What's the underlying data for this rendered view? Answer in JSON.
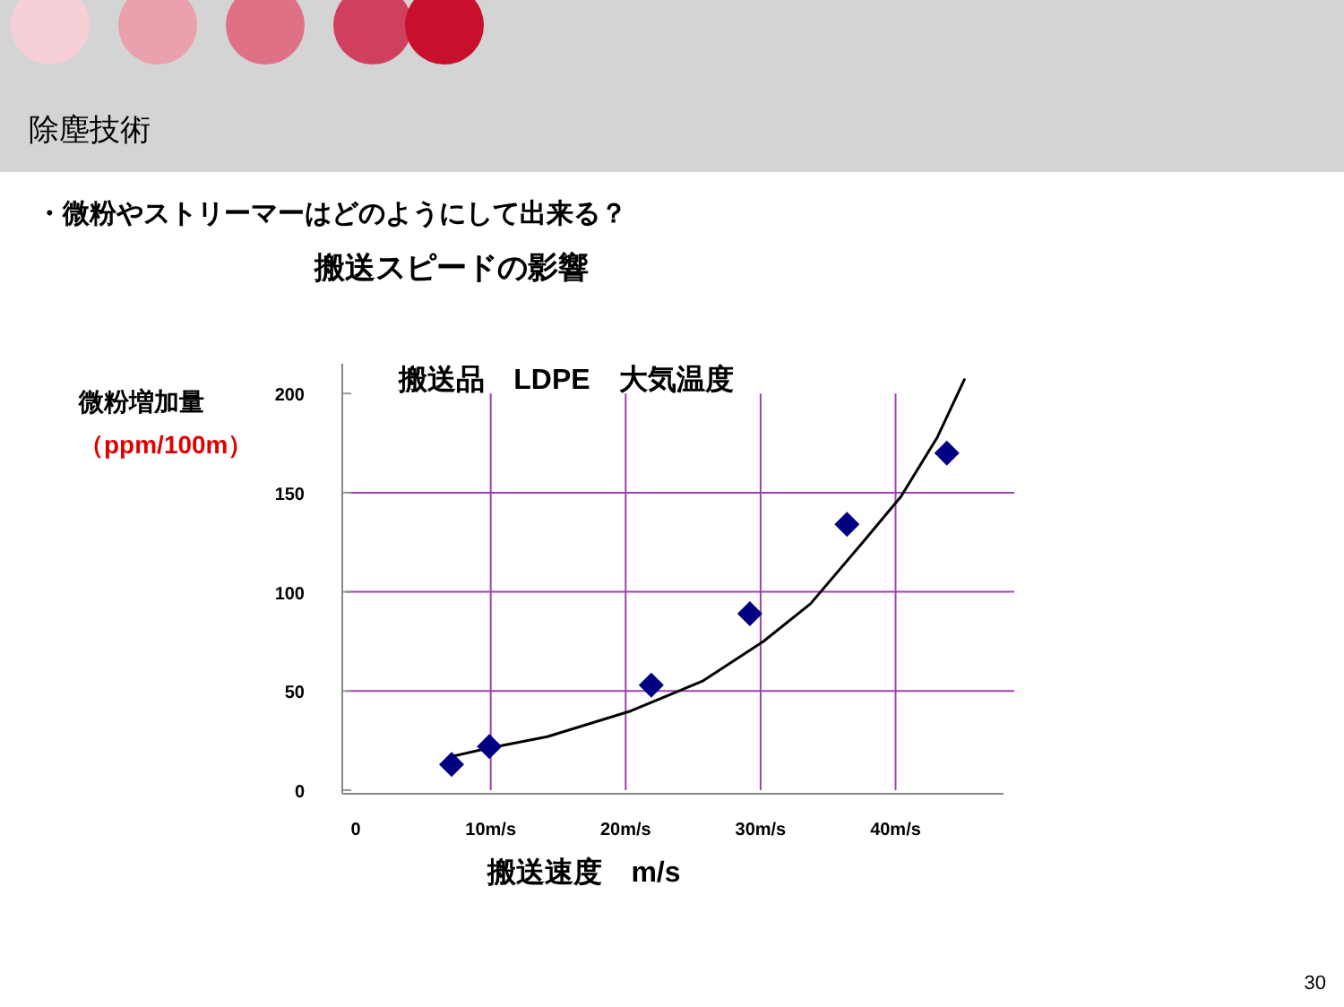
{
  "chart_data": {
    "type": "scatter",
    "title": "搬送品　LDPE　大気温度",
    "xlabel": "搬送速度　m/s",
    "ylabel": "微粉増加量",
    "annotations": [
      "除塵技術",
      "・微粉やストリーマーはどのようにして出来る？",
      "搬送スピードの影響",
      "30",
      "（ppm/100m）"
    ],
    "series": [
      {
        "type": "scatter",
        "color": "#000080",
        "marker": "diamond",
        "x": [
          7.1,
          9.9,
          21.9,
          29.2,
          36.4,
          43.8
        ],
        "values": [
          13,
          22,
          53,
          89,
          134,
          170
        ]
      },
      {
        "type": "line",
        "color": "#000000",
        "x": [
          7.1,
          9.7,
          14.2,
          20.4,
          25.7,
          30.2,
          33.7,
          37.7,
          40.4,
          43.1,
          45.1
        ],
        "values": [
          17,
          21,
          27,
          40,
          55,
          75,
          94,
          126,
          148,
          178,
          207
        ]
      }
    ],
    "xlim": [
      -1,
      48
    ],
    "ylim": [
      0,
      215
    ],
    "xticks": [
      0,
      {
        "value": 10,
        "label": "10m/s"
      },
      {
        "value": 20,
        "label": "20m/s"
      },
      {
        "value": 30,
        "label": "30m/s"
      },
      {
        "value": 40,
        "label": "40m/s"
      }
    ],
    "yticks": [
      0,
      50,
      100,
      150,
      200
    ],
    "grid": true
  }
}
